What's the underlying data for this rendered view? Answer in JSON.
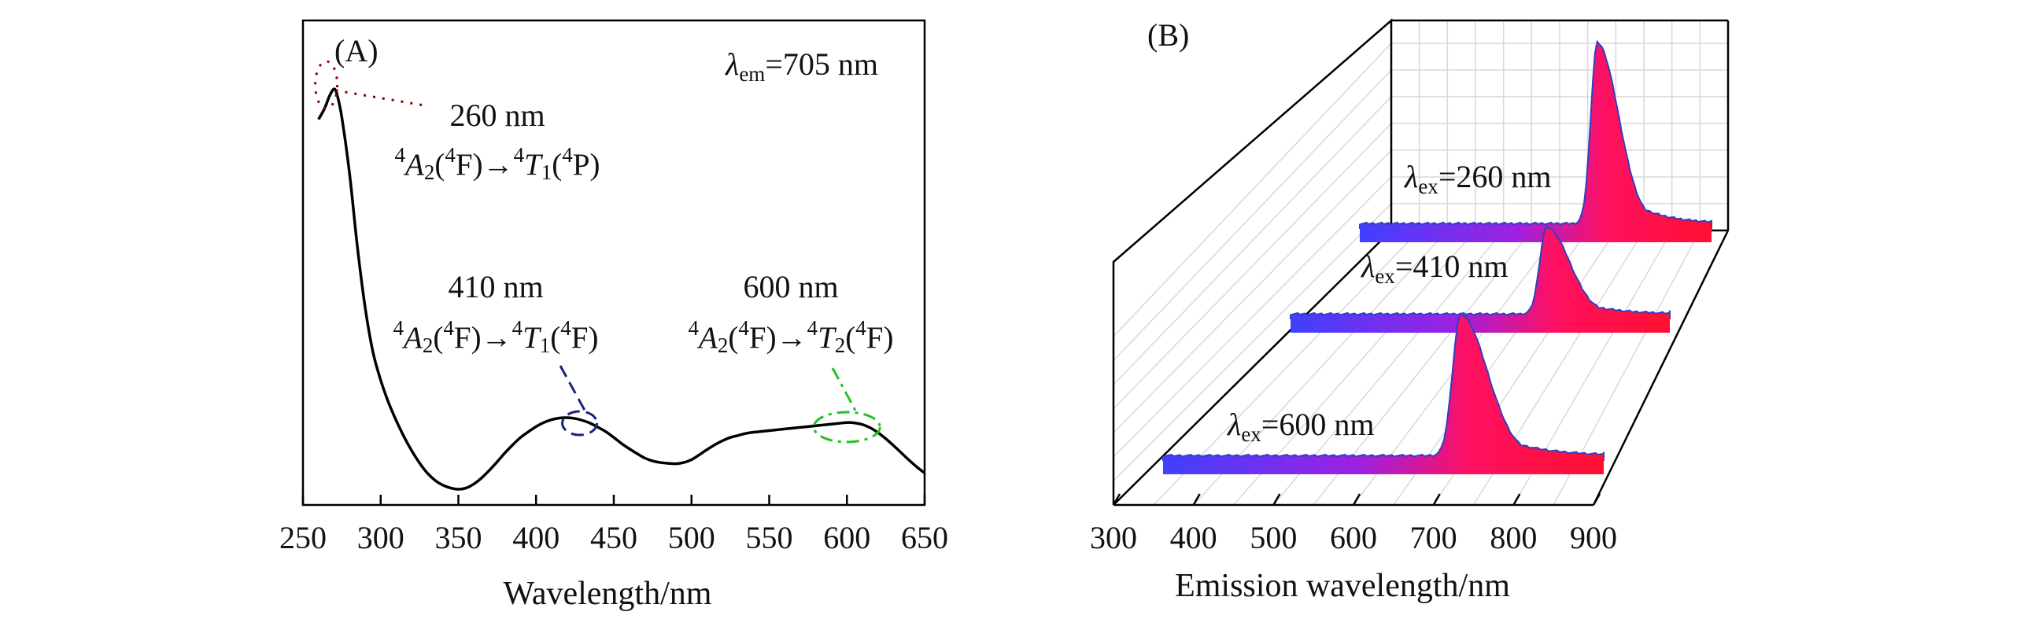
{
  "chart_data": [
    {
      "panel_label": "(A)",
      "type": "line",
      "xlabel": "Wavelength/nm",
      "ylabel": "",
      "xlim": [
        250,
        650
      ],
      "xticks": [
        250,
        300,
        350,
        400,
        450,
        500,
        550,
        600,
        650
      ],
      "grid": false,
      "title": "",
      "emission_label": {
        "symbol": "λ",
        "sub": "em",
        "value": "=705 nm"
      },
      "series": [
        {
          "name": "",
          "color": "#000000",
          "x": [
            260,
            263,
            265,
            267,
            270,
            272,
            275,
            280,
            285,
            290,
            295,
            300,
            305,
            310,
            315,
            320,
            325,
            330,
            335,
            340,
            345,
            350,
            355,
            360,
            365,
            370,
            375,
            380,
            385,
            390,
            395,
            400,
            405,
            410,
            415,
            420,
            425,
            430,
            435,
            440,
            445,
            450,
            455,
            460,
            465,
            470,
            475,
            480,
            485,
            490,
            495,
            500,
            505,
            510,
            515,
            520,
            525,
            530,
            535,
            540,
            545,
            550,
            555,
            560,
            565,
            570,
            575,
            580,
            585,
            590,
            595,
            600,
            605,
            610,
            615,
            620,
            625,
            630,
            635,
            640,
            645,
            650
          ],
          "y": [
            0.915,
            0.935,
            0.952,
            0.972,
            0.99,
            0.975,
            0.92,
            0.78,
            0.6,
            0.45,
            0.34,
            0.27,
            0.215,
            0.17,
            0.13,
            0.095,
            0.065,
            0.04,
            0.022,
            0.01,
            0.003,
            0.0,
            0.003,
            0.013,
            0.028,
            0.047,
            0.068,
            0.09,
            0.11,
            0.128,
            0.142,
            0.155,
            0.165,
            0.172,
            0.176,
            0.177,
            0.175,
            0.17,
            0.163,
            0.153,
            0.142,
            0.128,
            0.113,
            0.1,
            0.088,
            0.077,
            0.07,
            0.066,
            0.064,
            0.063,
            0.066,
            0.073,
            0.085,
            0.098,
            0.11,
            0.12,
            0.128,
            0.133,
            0.138,
            0.141,
            0.143,
            0.145,
            0.147,
            0.149,
            0.151,
            0.153,
            0.155,
            0.157,
            0.159,
            0.161,
            0.163,
            0.165,
            0.164,
            0.16,
            0.152,
            0.14,
            0.125,
            0.108,
            0.09,
            0.072,
            0.055,
            0.04
          ]
        }
      ],
      "annotations": [
        {
          "wavelength_label": "260 nm",
          "transition": {
            "a": "A",
            "a_sub": "2",
            "mid": "(4F)→",
            "b": "T",
            "b_sub": "1",
            "end": "(4P)"
          },
          "marker_x": 265,
          "color": "#8b0000",
          "style": "dotted"
        },
        {
          "wavelength_label": "410 nm",
          "transition": {
            "a": "A",
            "a_sub": "2",
            "mid": "(4F)→",
            "b": "T",
            "b_sub": "1",
            "end": "(4F)"
          },
          "marker_x": 428,
          "color": "#1a237e",
          "style": "dashed"
        },
        {
          "wavelength_label": "600 nm",
          "transition": {
            "a": "A",
            "a_sub": "2",
            "mid": "(4F)→",
            "b": "T",
            "b_sub": "2",
            "end": "(4F)"
          },
          "marker_x": 600,
          "color": "#22c322",
          "style": "dashdot"
        }
      ]
    },
    {
      "panel_label": "(B)",
      "type": "area",
      "xlabel": "Emission wavelength/nm",
      "ylabel": "",
      "xlim": [
        300,
        900
      ],
      "xticks": [
        300,
        400,
        500,
        600,
        700,
        800,
        900
      ],
      "grid": true,
      "title": "",
      "fill_gradient": [
        "#4040ff",
        "#ff1050"
      ],
      "series": [
        {
          "name": "",
          "label_symbol": "λ",
          "label_sub": "ex",
          "label_value": "=260 nm",
          "peak_x": 705,
          "peak_height": 1.0,
          "baseline": 0.02
        },
        {
          "name": "",
          "label_symbol": "λ",
          "label_sub": "ex",
          "label_value": "=410 nm",
          "peak_x": 705,
          "peak_height": 0.48,
          "baseline": 0.02
        },
        {
          "name": "",
          "label_symbol": "λ",
          "label_sub": "ex",
          "label_value": "=600 nm",
          "peak_x": 705,
          "peak_height": 0.78,
          "baseline": 0.02
        }
      ]
    }
  ]
}
